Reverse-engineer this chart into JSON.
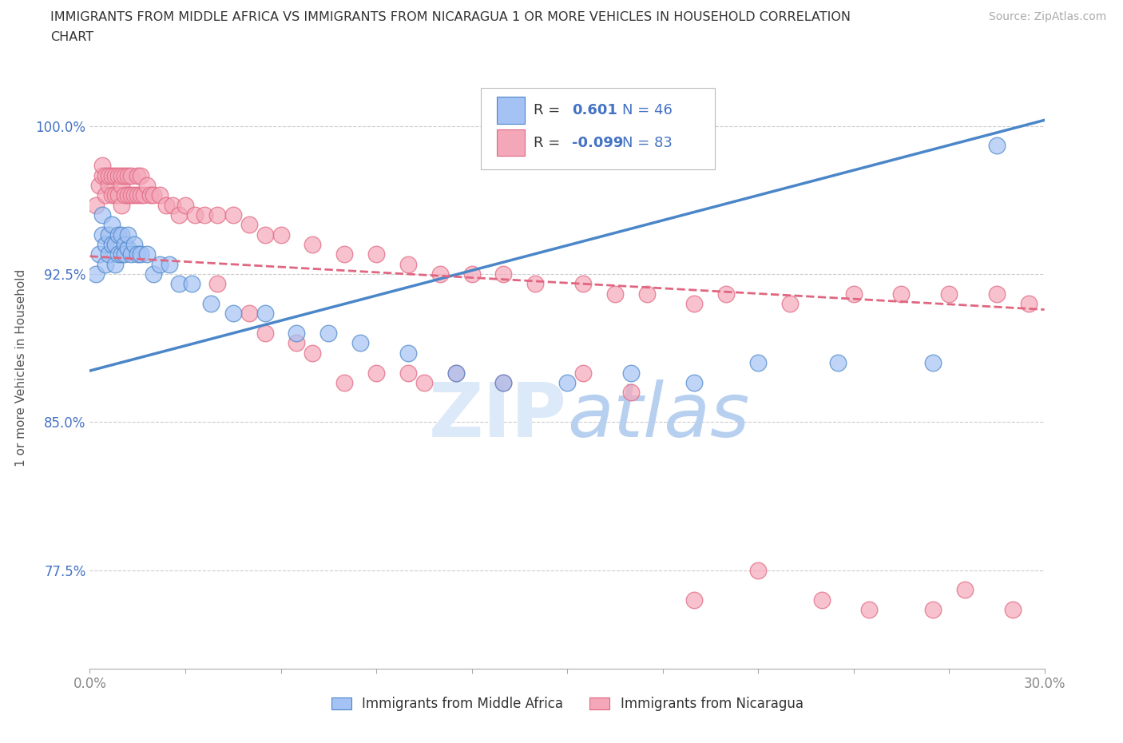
{
  "title_line1": "IMMIGRANTS FROM MIDDLE AFRICA VS IMMIGRANTS FROM NICARAGUA 1 OR MORE VEHICLES IN HOUSEHOLD CORRELATION",
  "title_line2": "CHART",
  "source_text": "Source: ZipAtlas.com",
  "ylabel": "1 or more Vehicles in Household",
  "xlim": [
    0.0,
    0.3
  ],
  "ylim": [
    0.725,
    1.03
  ],
  "yticks": [
    0.775,
    0.85,
    0.925,
    1.0
  ],
  "ytick_labels": [
    "77.5%",
    "85.0%",
    "92.5%",
    "100.0%"
  ],
  "xticks": [
    0.0,
    0.03,
    0.06,
    0.09,
    0.12,
    0.15,
    0.18,
    0.21,
    0.24,
    0.27,
    0.3
  ],
  "xtick_labels": [
    "0.0%",
    "",
    "",
    "",
    "",
    "",
    "",
    "",
    "",
    "",
    "30.0%"
  ],
  "blue_R": 0.601,
  "blue_N": 46,
  "pink_R": -0.099,
  "pink_N": 83,
  "blue_color": "#a4c2f4",
  "pink_color": "#f4a7b9",
  "blue_line_color": "#4a86c8",
  "pink_line_color": "#e06680",
  "axis_color": "#4472c4",
  "tick_color": "#888888",
  "grid_color": "#cccccc",
  "background_color": "#ffffff",
  "watermark_color": "#dce9f8",
  "legend_blue_label": "Immigrants from Middle Africa",
  "legend_pink_label": "Immigrants from Nicaragua",
  "blue_trend_x0": 0.0,
  "blue_trend_y0": 0.876,
  "blue_trend_x1": 0.3,
  "blue_trend_y1": 1.003,
  "pink_trend_x0": 0.0,
  "pink_trend_y0": 0.934,
  "pink_trend_x1": 0.3,
  "pink_trend_y1": 0.907,
  "blue_scatter_x": [
    0.002,
    0.003,
    0.004,
    0.004,
    0.005,
    0.005,
    0.006,
    0.006,
    0.007,
    0.007,
    0.008,
    0.008,
    0.009,
    0.009,
    0.01,
    0.01,
    0.011,
    0.011,
    0.012,
    0.012,
    0.013,
    0.014,
    0.015,
    0.016,
    0.018,
    0.02,
    0.022,
    0.025,
    0.028,
    0.032,
    0.038,
    0.045,
    0.055,
    0.065,
    0.075,
    0.085,
    0.1,
    0.115,
    0.13,
    0.15,
    0.17,
    0.19,
    0.21,
    0.235,
    0.265,
    0.285
  ],
  "blue_scatter_y": [
    0.925,
    0.935,
    0.945,
    0.955,
    0.93,
    0.94,
    0.935,
    0.945,
    0.94,
    0.95,
    0.93,
    0.94,
    0.935,
    0.945,
    0.935,
    0.945,
    0.94,
    0.935,
    0.938,
    0.945,
    0.935,
    0.94,
    0.935,
    0.935,
    0.935,
    0.925,
    0.93,
    0.93,
    0.92,
    0.92,
    0.91,
    0.905,
    0.905,
    0.895,
    0.895,
    0.89,
    0.885,
    0.875,
    0.87,
    0.87,
    0.875,
    0.87,
    0.88,
    0.88,
    0.88,
    0.99
  ],
  "pink_scatter_x": [
    0.002,
    0.003,
    0.004,
    0.004,
    0.005,
    0.005,
    0.006,
    0.006,
    0.007,
    0.007,
    0.008,
    0.008,
    0.009,
    0.009,
    0.01,
    0.01,
    0.01,
    0.011,
    0.011,
    0.012,
    0.012,
    0.013,
    0.013,
    0.014,
    0.015,
    0.015,
    0.016,
    0.016,
    0.017,
    0.018,
    0.019,
    0.02,
    0.022,
    0.024,
    0.026,
    0.028,
    0.03,
    0.033,
    0.036,
    0.04,
    0.045,
    0.05,
    0.055,
    0.06,
    0.07,
    0.08,
    0.09,
    0.1,
    0.11,
    0.12,
    0.13,
    0.14,
    0.155,
    0.165,
    0.175,
    0.19,
    0.2,
    0.22,
    0.24,
    0.255,
    0.27,
    0.285,
    0.295,
    0.04,
    0.05,
    0.055,
    0.065,
    0.07,
    0.08,
    0.09,
    0.1,
    0.105,
    0.115,
    0.13,
    0.155,
    0.17,
    0.19,
    0.21,
    0.23,
    0.245,
    0.265,
    0.275,
    0.29
  ],
  "pink_scatter_y": [
    0.96,
    0.97,
    0.975,
    0.98,
    0.965,
    0.975,
    0.97,
    0.975,
    0.965,
    0.975,
    0.965,
    0.975,
    0.965,
    0.975,
    0.96,
    0.97,
    0.975,
    0.965,
    0.975,
    0.965,
    0.975,
    0.965,
    0.975,
    0.965,
    0.965,
    0.975,
    0.965,
    0.975,
    0.965,
    0.97,
    0.965,
    0.965,
    0.965,
    0.96,
    0.96,
    0.955,
    0.96,
    0.955,
    0.955,
    0.955,
    0.955,
    0.95,
    0.945,
    0.945,
    0.94,
    0.935,
    0.935,
    0.93,
    0.925,
    0.925,
    0.925,
    0.92,
    0.92,
    0.915,
    0.915,
    0.91,
    0.915,
    0.91,
    0.915,
    0.915,
    0.915,
    0.915,
    0.91,
    0.92,
    0.905,
    0.895,
    0.89,
    0.885,
    0.87,
    0.875,
    0.875,
    0.87,
    0.875,
    0.87,
    0.875,
    0.865,
    0.76,
    0.775,
    0.76,
    0.755,
    0.755,
    0.765,
    0.755
  ]
}
